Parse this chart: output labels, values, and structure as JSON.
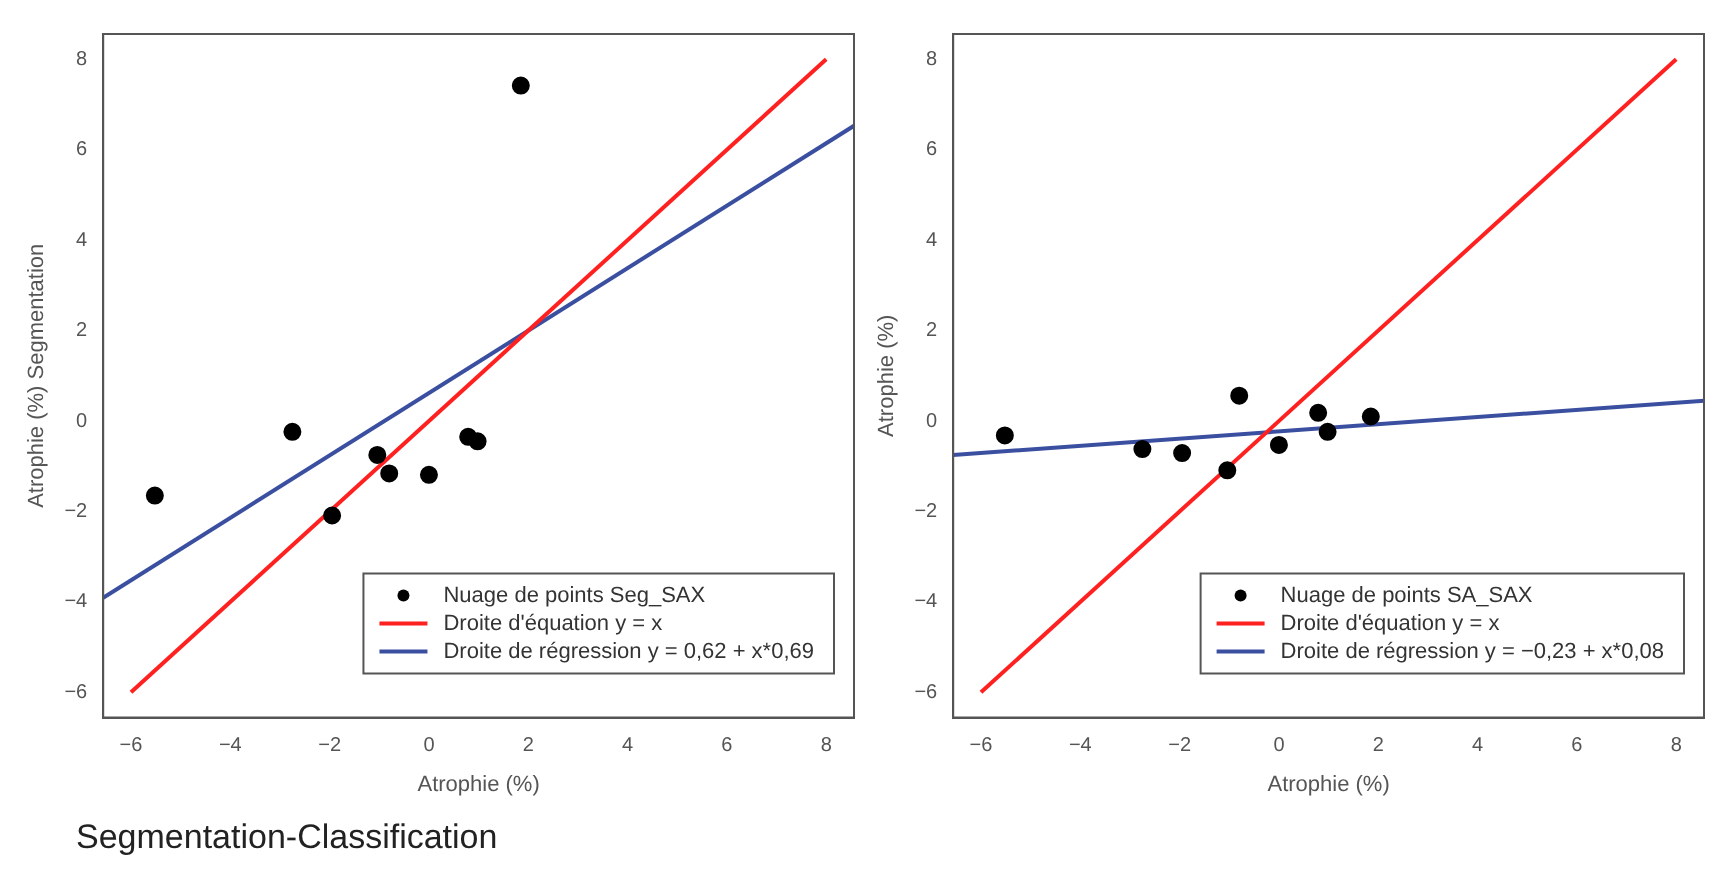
{
  "chart_data": [
    {
      "type": "scatter",
      "title": "Segmentation-Classification",
      "xlabel": "Atrophie (%)",
      "ylabel": "Atrophie (%) Segmentation",
      "xlim": [
        -6.56,
        8.56
      ],
      "ylim": [
        -6.56,
        8.56
      ],
      "xticks": [
        -6,
        -4,
        -2,
        0,
        2,
        4,
        6,
        8
      ],
      "yticks": [
        -6,
        -4,
        -2,
        0,
        2,
        4,
        6,
        8
      ],
      "grid": false,
      "legend": "bottom right",
      "marker": "circle",
      "series": [
        {
          "name": "Nuage de points Seg_SAX",
          "color": "#000000",
          "x": [
            -5.52,
            -2.75,
            -1.95,
            -1.04,
            -0.8,
            0,
            0.79,
            0.98,
            1.85
          ],
          "values": [
            -1.65,
            -0.24,
            -2.09,
            -0.75,
            -1.16,
            -1.19,
            -0.35,
            -0.45,
            7.42
          ]
        },
        {
          "name": "Droite d'équation y = x",
          "type": "line",
          "marker": "none",
          "color": "#ff2020",
          "x": [
            -6,
            8
          ],
          "values": [
            -6,
            8
          ]
        },
        {
          "name": "Droite de régression y = 0,62 + x*0,69",
          "type": "line",
          "marker": "none",
          "color": "#3a4fa0",
          "x": [
            -6.56,
            8.56
          ],
          "values": [
            -3.91,
            6.53
          ]
        }
      ]
    },
    {
      "type": "scatter",
      "xlabel": "Atrophie (%)",
      "ylabel": "Atrophie (%)",
      "xlim": [
        -6.56,
        8.56
      ],
      "ylim": [
        -6.56,
        8.56
      ],
      "xticks": [
        -6,
        -4,
        -2,
        0,
        2,
        4,
        6,
        8
      ],
      "yticks": [
        -6,
        -4,
        -2,
        0,
        2,
        4,
        6,
        8
      ],
      "grid": false,
      "legend": "bottom right",
      "marker": "circle",
      "series": [
        {
          "name": "Nuage de points SA_SAX",
          "color": "#000000",
          "x": [
            -5.52,
            -2.75,
            -1.95,
            -1.04,
            -0.8,
            0,
            0.79,
            0.98,
            1.85
          ],
          "values": [
            -0.32,
            -0.62,
            -0.71,
            -1.09,
            0.56,
            -0.53,
            0.18,
            -0.24,
            0.1
          ]
        },
        {
          "name": "Droite d'équation y = x",
          "type": "line",
          "marker": "none",
          "color": "#ff2020",
          "x": [
            -6,
            8
          ],
          "values": [
            -6,
            8
          ]
        },
        {
          "name": "Droite de régression y = −0,23 + x*0,08",
          "type": "line",
          "marker": "none",
          "color": "#3a4fa0",
          "x": [
            -6.56,
            8.56
          ],
          "values": [
            -0.75,
            0.45
          ]
        }
      ]
    }
  ]
}
